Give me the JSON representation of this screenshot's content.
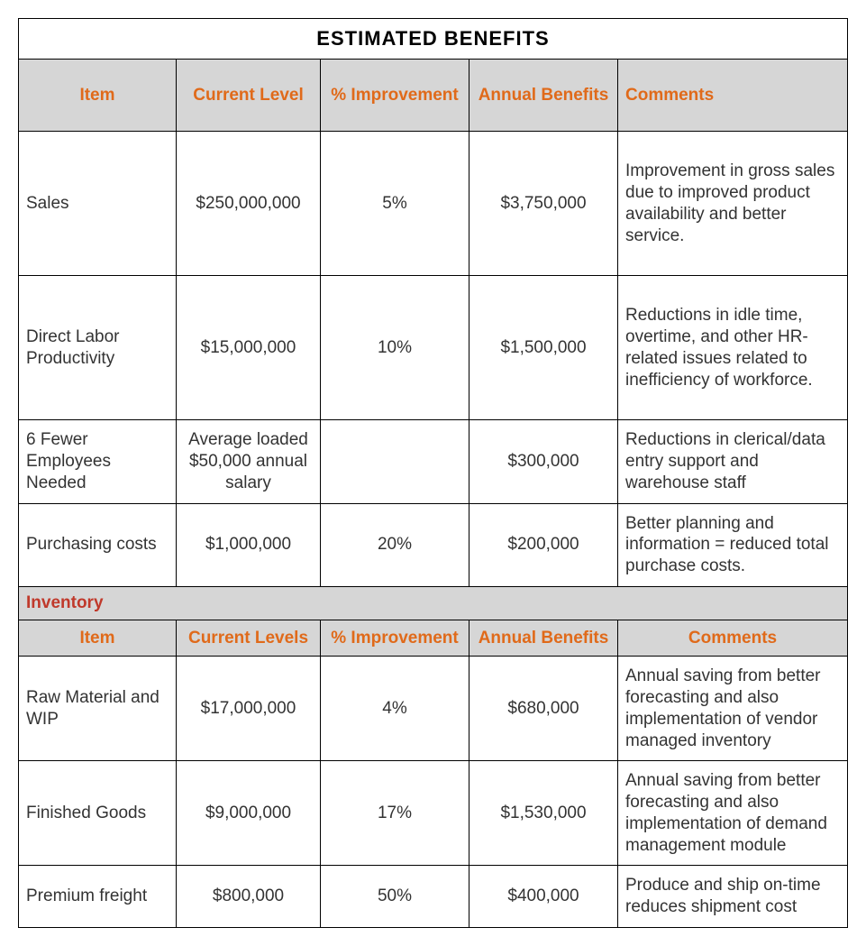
{
  "title": "ESTIMATED BENEFITS",
  "colors": {
    "header_bg": "#d6d6d6",
    "header_text": "#e06a1a",
    "section_text": "#c0392b",
    "body_text": "#333333",
    "border": "#000000"
  },
  "headers1": {
    "item": "Item",
    "current": "Current Level",
    "improvement": "% Improvement",
    "benefits": "Annual Benefits",
    "comments": "Comments"
  },
  "rows1": [
    {
      "item": "Sales",
      "current": "$250,000,000",
      "improvement": "5%",
      "benefits": "$3,750,000",
      "comments": "Improvement in gross sales due to improved product availability and better service."
    },
    {
      "item": "Direct Labor Productivity",
      "current": "$15,000,000",
      "improvement": "10%",
      "benefits": "$1,500,000",
      "comments": "Reductions in idle time, overtime, and other HR-related issues related to inefficiency of workforce."
    },
    {
      "item": "6 Fewer Employees Needed",
      "current": "Average loaded $50,000 annual salary",
      "improvement": "",
      "benefits": "$300,000",
      "comments": "Reductions in clerical/data entry support and warehouse staff"
    },
    {
      "item": "Purchasing costs",
      "current": "$1,000,000",
      "improvement": "20%",
      "benefits": "$200,000",
      "comments": "Better planning and information = reduced total purchase costs."
    }
  ],
  "section2": "Inventory",
  "headers2": {
    "item": "Item",
    "current": "Current Levels",
    "improvement": "% Improvement",
    "benefits": "Annual Benefits",
    "comments": "Comments"
  },
  "rows2": [
    {
      "item": "Raw Material and WIP",
      "current": "$17,000,000",
      "improvement": "4%",
      "benefits": "$680,000",
      "comments": "Annual saving from better forecasting and also implementation of vendor managed inventory"
    },
    {
      "item": "Finished Goods",
      "current": "$9,000,000",
      "improvement": "17%",
      "benefits": "$1,530,000",
      "comments": "Annual saving from better forecasting and also implementation of demand management module"
    },
    {
      "item": "Premium freight",
      "current": "$800,000",
      "improvement": "50%",
      "benefits": "$400,000",
      "comments": "Produce and ship on-time reduces shipment cost"
    }
  ]
}
